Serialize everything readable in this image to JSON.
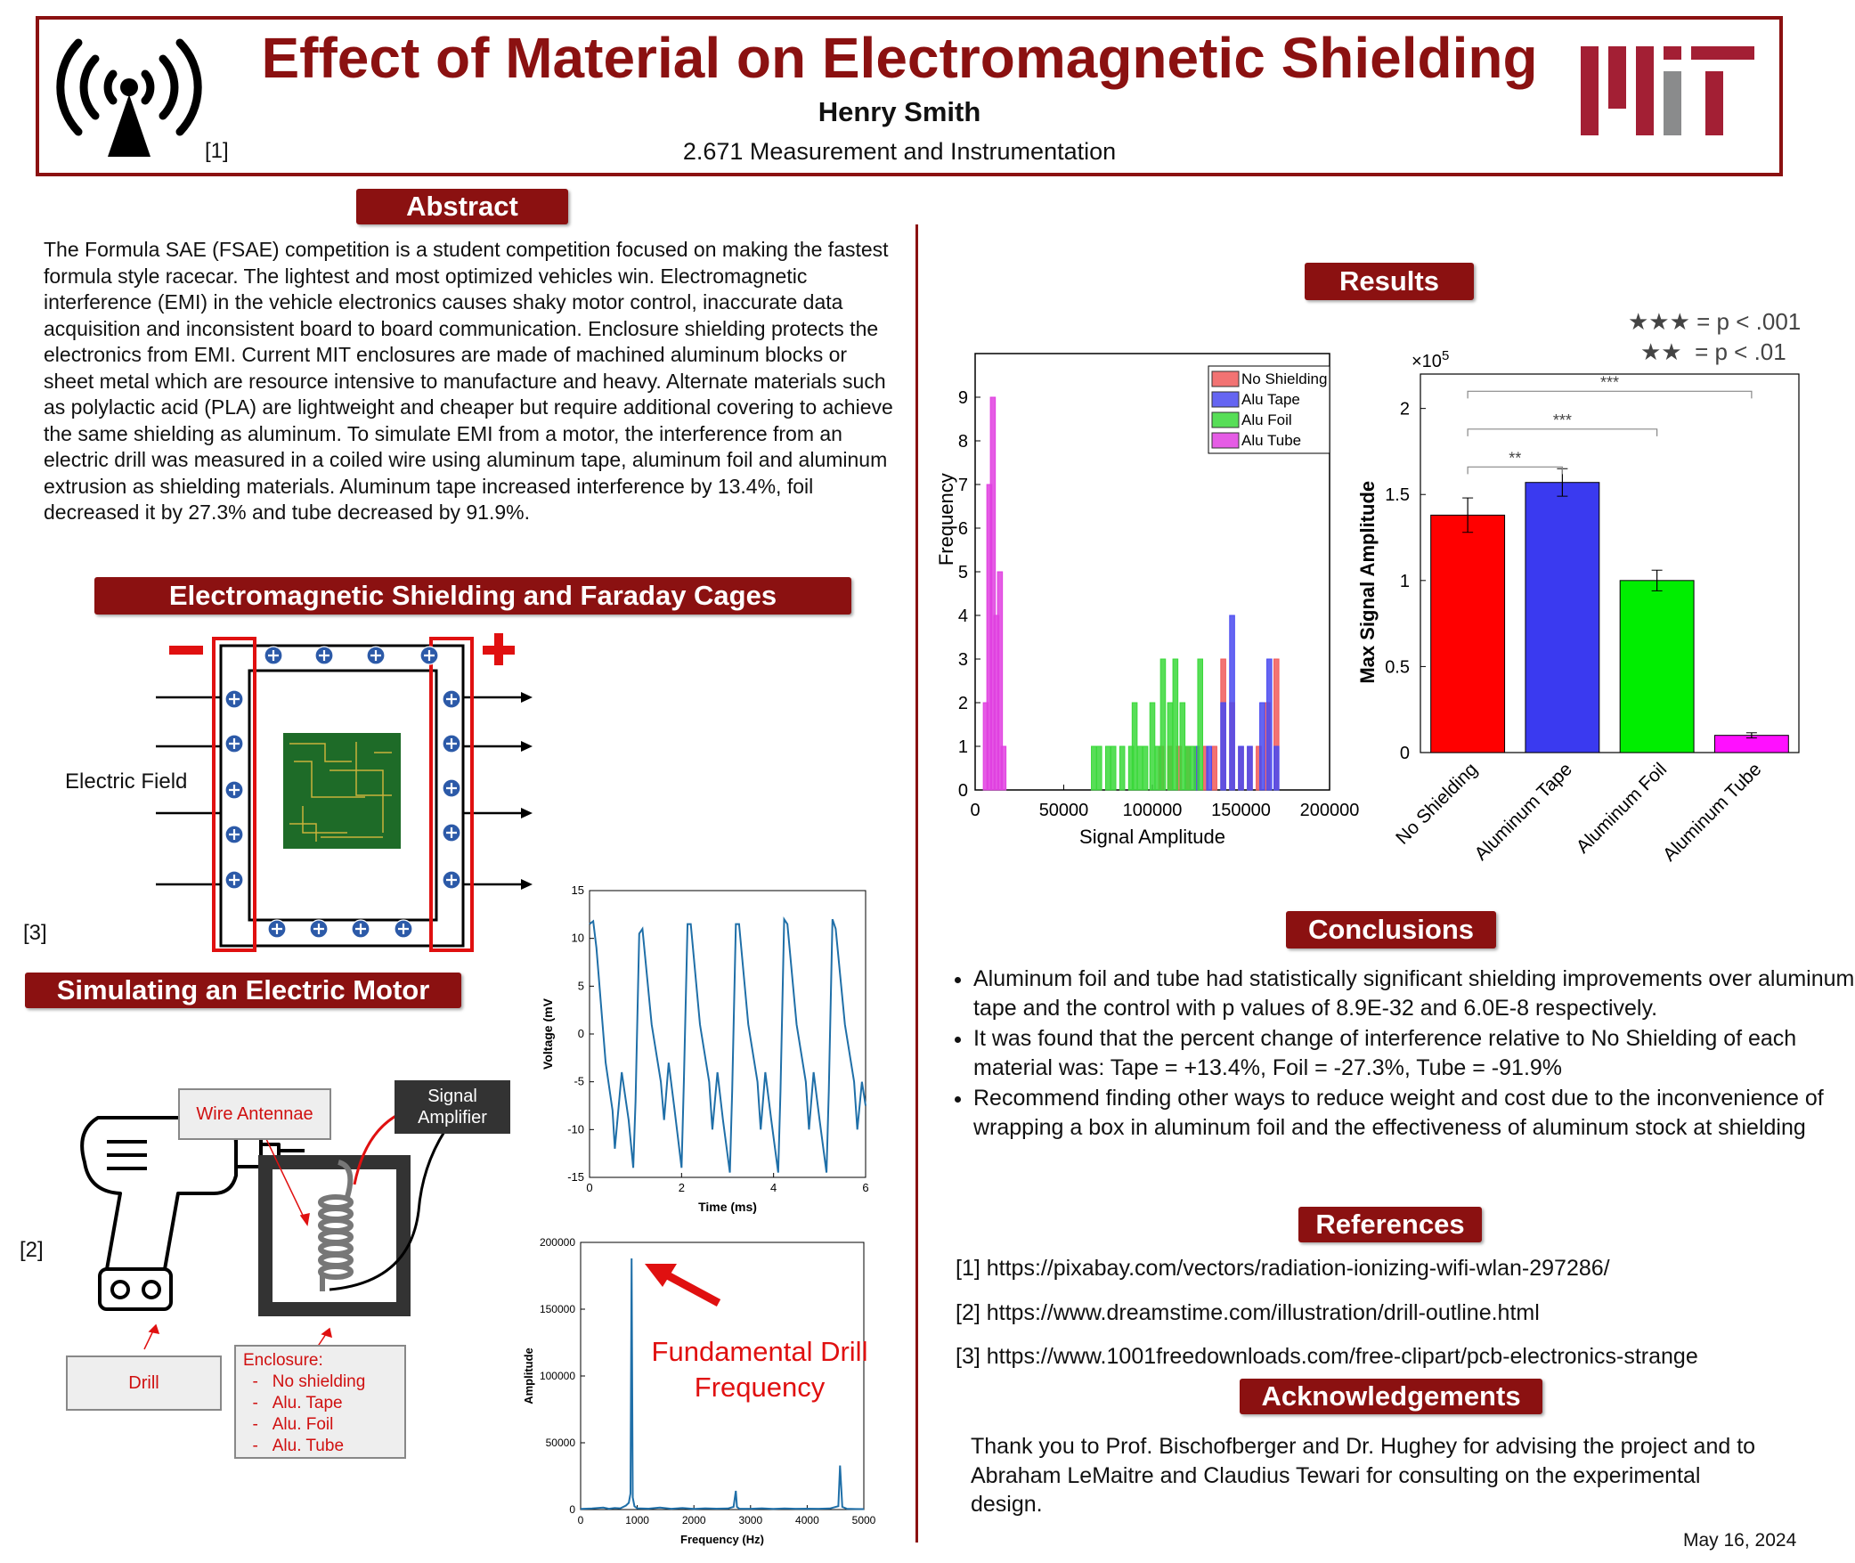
{
  "header": {
    "title": "Effect of Material on Electromagnetic Shielding",
    "author": "Henry Smith",
    "course": "2.671 Measurement and Instrumentation",
    "logo_ref": "[1]",
    "logo_icon": "radio-antenna-icon",
    "mit_logo_icon": "mit-logo",
    "accent_color": "#8b1111"
  },
  "abstract": {
    "heading": "Abstract",
    "text": "The Formula SAE (FSAE) competition is a student competition focused on making the fastest formula style racecar. The lightest and most optimized vehicles win. Electromagnetic interference (EMI) in the vehicle electronics causes shaky motor control, inaccurate data acquisition and inconsistent board to board communication. Enclosure shielding protects the electronics from EMI. Current MIT enclosures are made of machined aluminum blocks or sheet metal which are resource intensive to manufacture and heavy. Alternate materials such as polylactic acid (PLA) are lightweight and cheaper but require additional covering to achieve the same shielding as aluminum. To simulate EMI from a motor, the interference from an electric drill was measured in a coiled wire using aluminum tape, aluminum foil and aluminum extrusion as shielding materials. Aluminum tape increased interference by 13.4%, foil decreased it by 27.3% and tube decreased by 91.9%."
  },
  "faraday": {
    "heading": "Electromagnetic Shielding and Faraday Cages",
    "field_label": "Electric Field",
    "ref": "[3]",
    "minus_symbol": "−",
    "plus_symbol": "+"
  },
  "motor": {
    "heading": "Simulating an Electric Motor",
    "ref": "[2]",
    "wire_label": "Wire Antennae",
    "amp_label_1": "Signal",
    "amp_label_2": "Amplifier",
    "drill_label": "Drill",
    "enclosure_title": "Enclosure:",
    "enclosure_items": [
      "No shielding",
      "Alu. Tape",
      "Alu. Foil",
      "Alu. Tube"
    ],
    "fft_annotation_1": "Fundamental Drill",
    "fft_annotation_2": "Frequency"
  },
  "results": {
    "heading": "Results",
    "sig_3": "★★★ = p < .001",
    "sig_2": "★★  = p < .01"
  },
  "conclusions": {
    "heading": "Conclusions",
    "items": [
      "Aluminum foil and tube had statistically significant shielding improvements over aluminum tape and the control with p values of 8.9E-32 and 6.0E-8 respectively.",
      "It was found that the percent change of interference relative to No Shielding of each material was: Tape = +13.4%, Foil = -27.3%, Tube = -91.9%",
      "Recommend finding other ways to reduce weight and cost due to the inconvenience of wrapping a box in aluminum foil and the effectiveness of aluminum stock at shielding"
    ]
  },
  "references": {
    "heading": "References",
    "items": [
      "[1] https://pixabay.com/vectors/radiation-ionizing-wifi-wlan-297286/",
      "[2] https://www.dreamstime.com/illustration/drill-outline.html",
      "[3] https://www.1001freedownloads.com/free-clipart/pcb-electronics-strange"
    ]
  },
  "acknowledgements": {
    "heading": "Acknowledgements",
    "text": "Thank you to Prof. Bischofberger and Dr. Hughey for advising the project and to Abraham LeMaitre and Claudius Tewari for consulting on the experimental design."
  },
  "date": "May 16, 2024",
  "chart_data": [
    {
      "type": "line",
      "xlabel": "Time (ms)",
      "ylabel": "Voltage (mV",
      "xlim": [
        0,
        6
      ],
      "ylim": [
        -15,
        15
      ],
      "xticks": [
        "0",
        "2",
        "4",
        "6"
      ],
      "yticks": [
        "15",
        "10",
        "5",
        "0",
        "-5",
        "-10",
        "-15"
      ],
      "color": "#1f6fa8",
      "x": [
        0,
        0.08,
        0.15,
        0.35,
        0.5,
        0.55,
        0.7,
        0.85,
        0.95,
        1.0,
        1.08,
        1.15,
        1.35,
        1.55,
        1.62,
        1.72,
        1.85,
        2.0,
        2.05,
        2.13,
        2.2,
        2.4,
        2.6,
        2.67,
        2.78,
        2.9,
        3.05,
        3.1,
        3.18,
        3.25,
        3.45,
        3.65,
        3.72,
        3.82,
        3.95,
        4.1,
        4.15,
        4.23,
        4.3,
        4.5,
        4.7,
        4.77,
        4.87,
        5.0,
        5.15,
        5.2,
        5.28,
        5.35,
        5.55,
        5.75,
        5.82,
        5.92,
        6.0
      ],
      "y": [
        11.5,
        11.8,
        9,
        -3,
        -8,
        -12,
        -4,
        -9,
        -14,
        -7,
        10.5,
        11,
        1,
        -5,
        -9,
        -3,
        -8,
        -14,
        -5,
        11.5,
        11.5,
        1,
        -5,
        -10,
        -4,
        -9,
        -14.5,
        -6,
        11.5,
        11.5,
        1,
        -5,
        -10,
        -4,
        -9,
        -14.5,
        -6,
        12,
        11.5,
        1,
        -5,
        -10,
        -4,
        -9,
        -14.5,
        -6,
        12,
        11,
        1,
        -5,
        -10,
        -5,
        -7.5
      ]
    },
    {
      "type": "line",
      "xlabel": "Frequency (Hz)",
      "ylabel": "Amplitude",
      "xlim": [
        0,
        5000
      ],
      "ylim": [
        0,
        200000
      ],
      "xticks": [
        "0",
        "1000",
        "2000",
        "3000",
        "4000",
        "5000"
      ],
      "yticks": [
        "200000",
        "150000",
        "100000",
        "50000",
        "0"
      ],
      "color": "#1f6fa8",
      "x": [
        0,
        200,
        400,
        500,
        600,
        700,
        800,
        850,
        880,
        900,
        920,
        950,
        1000,
        1200,
        1400,
        1600,
        1800,
        2000,
        2200,
        2400,
        2600,
        2700,
        2740,
        2760,
        2800,
        3000,
        3200,
        3400,
        3600,
        3800,
        4000,
        4200,
        4400,
        4550,
        4580,
        4620,
        4700,
        4850,
        5000
      ],
      "y": [
        500,
        800,
        1500,
        600,
        1200,
        900,
        3000,
        5000,
        12000,
        188000,
        9000,
        2500,
        900,
        700,
        1500,
        600,
        1200,
        500,
        900,
        700,
        800,
        2000,
        14000,
        2000,
        700,
        600,
        900,
        500,
        800,
        600,
        700,
        600,
        800,
        2500,
        33000,
        2000,
        600,
        400,
        300
      ]
    },
    {
      "type": "bar",
      "title": "",
      "xlabel": "Signal Amplitude",
      "ylabel": "Frequency",
      "xlim": [
        0,
        200000
      ],
      "ylim": [
        0,
        10
      ],
      "xticks": [
        "0",
        "50000",
        "100000",
        "150000",
        "200000"
      ],
      "yticks": [
        "0",
        "1",
        "2",
        "3",
        "4",
        "5",
        "6",
        "7",
        "8",
        "9"
      ],
      "legend": "top-right",
      "series": [
        {
          "name": "No Shielding",
          "color": "#f05a5a",
          "x": [
            105000,
            110000,
            115000,
            120000,
            125000,
            130000,
            135000,
            140000,
            145000,
            150000,
            155000,
            160000,
            165000,
            170000
          ],
          "values": [
            1,
            1,
            1,
            1,
            1,
            1,
            1,
            3,
            2,
            1,
            1,
            1,
            2,
            3
          ]
        },
        {
          "name": "Alu Tape",
          "color": "#4a4af0",
          "x": [
            125000,
            132000,
            140000,
            145000,
            150000,
            155000,
            162000,
            166000,
            170000
          ],
          "values": [
            1,
            1,
            2,
            4,
            1,
            1,
            2,
            3,
            1
          ]
        },
        {
          "name": "Alu Foil",
          "color": "#3ad83a",
          "x": [
            67000,
            70000,
            75000,
            78000,
            83000,
            88000,
            90000,
            93000,
            96000,
            100000,
            103000,
            106000,
            110000,
            113000,
            117000,
            120000,
            123000,
            127000
          ],
          "values": [
            1,
            1,
            1,
            1,
            1,
            1,
            2,
            1,
            1,
            2,
            1,
            3,
            2,
            3,
            2,
            1,
            1,
            3
          ]
        },
        {
          "name": "Alu Tube",
          "color": "#e040e0",
          "x": [
            6000,
            8000,
            10000,
            12000,
            14000,
            16000
          ],
          "values": [
            2,
            7,
            9,
            4,
            5,
            1
          ]
        }
      ]
    },
    {
      "type": "bar",
      "ylabel": "Max Signal Amplitude",
      "yexponent": "×10",
      "yexponent_power": "5",
      "ylim": [
        0,
        2.2
      ],
      "yticks": [
        "0",
        "0.5",
        "1",
        "1.5",
        "2"
      ],
      "categories": [
        "No Shielding",
        "Aluminum Tape",
        "Aluminum Foil",
        "Aluminum Tube"
      ],
      "values": [
        1.38,
        1.57,
        1.0,
        0.1
      ],
      "errors": [
        0.1,
        0.08,
        0.06,
        0.015
      ],
      "colors": [
        "#ff0000",
        "#3a3af0",
        "#00ee00",
        "#ff10ff"
      ],
      "significance": [
        {
          "from": 0,
          "to": 1,
          "label": "**",
          "level": 1.66
        },
        {
          "from": 0,
          "to": 2,
          "label": "***",
          "level": 1.88
        },
        {
          "from": 0,
          "to": 3,
          "label": "***",
          "level": 2.1
        }
      ]
    }
  ]
}
